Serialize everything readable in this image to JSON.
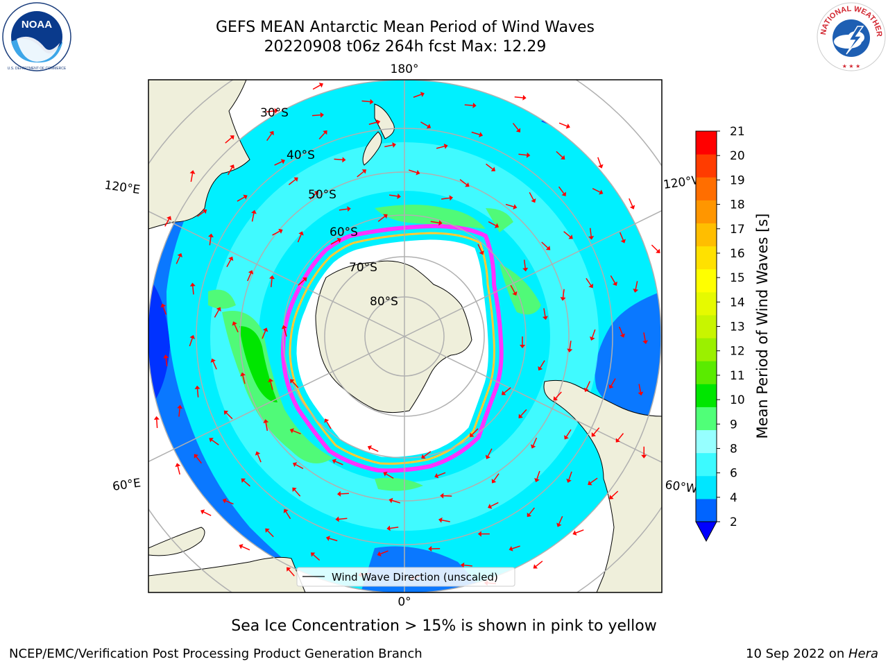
{
  "header": {
    "title_line1": "GEFS MEAN Antarctic Mean Period of Wind Waves",
    "title_line2": "20220908 t06z 264h fcst   Max: 12.29"
  },
  "logos": {
    "left": {
      "icon": "noaa-logo",
      "text": "NOAA"
    },
    "right": {
      "icon": "nws-logo",
      "text": "NATIONAL WEATHER SERVICE"
    }
  },
  "map": {
    "projection": "south-polar-stereographic",
    "longitude_labels": {
      "top": "180°",
      "upper_left": "120°E",
      "upper_right": "120°W",
      "lower_left": "60°E",
      "lower_right": "60°W",
      "bottom": "0°"
    },
    "latitude_labels": [
      "30°S",
      "40°S",
      "50°S",
      "60°S",
      "70°S",
      "80°S"
    ],
    "legend_label": "Wind Wave Direction (unscaled)",
    "colors": {
      "land": "#efefdb",
      "sea_ice_edge": "#ff33ff",
      "sea_ice_inner": "#ffcc33",
      "arrow": "#ff0000"
    }
  },
  "colorbar": {
    "label": "Mean Period of Wind Waves [s]",
    "tick_labels": [
      "2",
      "4",
      "6",
      "8",
      "9",
      "10",
      "11",
      "12",
      "13",
      "14",
      "15",
      "16",
      "17",
      "18",
      "19",
      "20",
      "21"
    ],
    "colors": [
      "#0064ff",
      "#00e6ff",
      "#3cfaff",
      "#96ffff",
      "#50ff78",
      "#00e600",
      "#5aeb00",
      "#9bf000",
      "#c8f500",
      "#e6fa00",
      "#ffff00",
      "#ffe100",
      "#ffbe00",
      "#ff9600",
      "#ff6e00",
      "#ff3c00",
      "#ff0000"
    ],
    "extend_color": "#0000ff"
  },
  "chart_data": {
    "type": "map",
    "title": "GEFS MEAN Antarctic Mean Period of Wind Waves",
    "subtitle": "20220908 t06z 264h fcst   Max: 12.29",
    "variable": "Mean Period of Wind Waves [s]",
    "max_value": 12.29,
    "colorbar_bounds": [
      2,
      4,
      6,
      8,
      9,
      10,
      11,
      12,
      13,
      14,
      15,
      16,
      17,
      18,
      19,
      20,
      21
    ],
    "colorbar_extend": "min"
  },
  "footer": {
    "caption": "Sea Ice Concentration > 15% is shown in pink to yellow",
    "left": "NCEP/EMC/Verification Post Processing Product Generation Branch",
    "right_date": "10 Sep 2022 on ",
    "right_machine": "Hera"
  }
}
